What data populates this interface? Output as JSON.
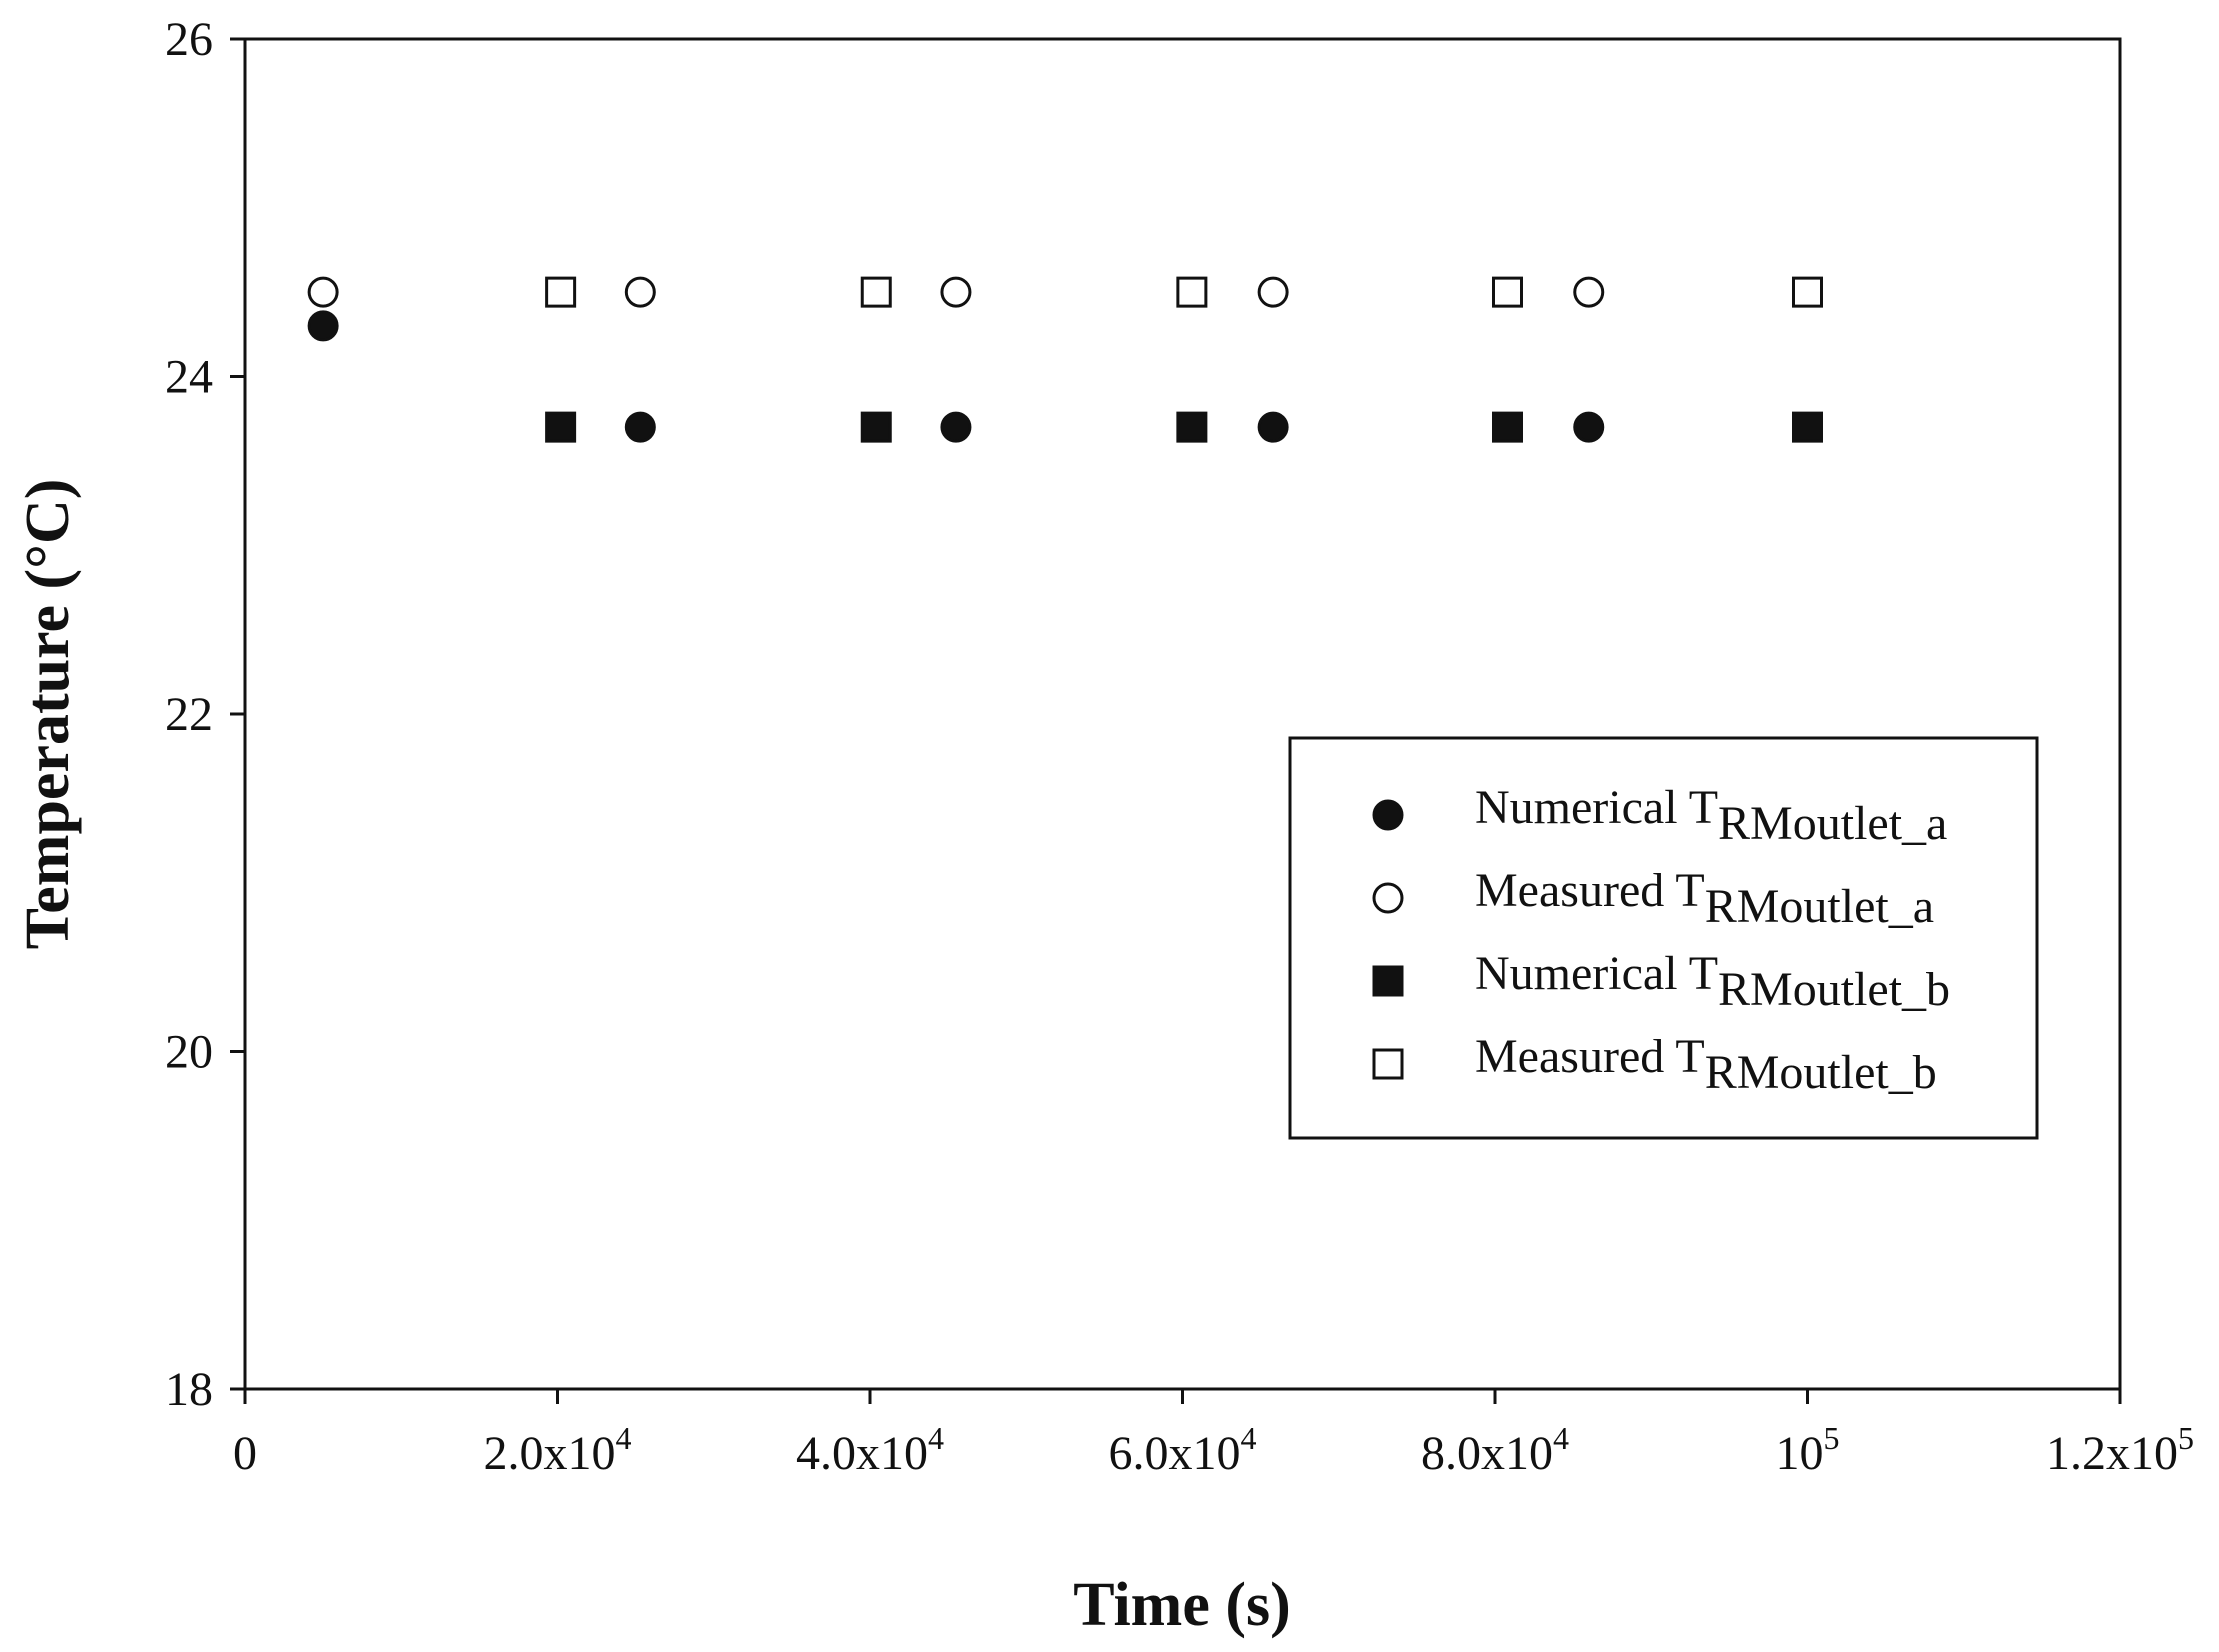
{
  "chart_data": {
    "type": "scatter",
    "title": "",
    "xlabel": "Time (s)",
    "ylabel": "Temperature (°C)",
    "xlim": [
      0,
      120000
    ],
    "ylim": [
      18,
      26
    ],
    "grid": false,
    "legend_position": "center-right",
    "x_ticks": [
      {
        "value": 0,
        "mantissa": "0",
        "exponent": ""
      },
      {
        "value": 20000,
        "mantissa": "2.0x10",
        "exponent": "4"
      },
      {
        "value": 40000,
        "mantissa": "4.0x10",
        "exponent": "4"
      },
      {
        "value": 60000,
        "mantissa": "6.0x10",
        "exponent": "4"
      },
      {
        "value": 80000,
        "mantissa": "8.0x10",
        "exponent": "4"
      },
      {
        "value": 100000,
        "mantissa": "10",
        "exponent": "5"
      },
      {
        "value": 120000,
        "mantissa": "1.2x10",
        "exponent": "5"
      }
    ],
    "y_ticks": [
      {
        "value": 18,
        "label": "18"
      },
      {
        "value": 20,
        "label": "20"
      },
      {
        "value": 22,
        "label": "22"
      },
      {
        "value": 24,
        "label": "24"
      },
      {
        "value": 26,
        "label": "26"
      }
    ],
    "series": [
      {
        "name": "Numerical T_RMoutlet_a",
        "label_main": "Numerical T",
        "label_sub": "RMoutlet_a",
        "marker": "circle",
        "filled": true,
        "x": [
          5000,
          25300,
          45500,
          65800,
          86000
        ],
        "y": [
          24.3,
          23.7,
          23.7,
          23.7,
          23.7
        ]
      },
      {
        "name": "Measured T_RMoutlet_a",
        "label_main": "Measured T",
        "label_sub": "RMoutlet_a",
        "marker": "circle",
        "filled": false,
        "x": [
          5000,
          25300,
          45500,
          65800,
          86000
        ],
        "y": [
          24.5,
          24.5,
          24.5,
          24.5,
          24.5
        ]
      },
      {
        "name": "Numerical T_RMoutlet_b",
        "label_main": "Numerical T",
        "label_sub": "RMoutlet_b",
        "marker": "square",
        "filled": true,
        "x": [
          20200,
          40400,
          60600,
          80800,
          100000
        ],
        "y": [
          23.7,
          23.7,
          23.7,
          23.7,
          23.7
        ]
      },
      {
        "name": "Measured T_RMoutlet_b",
        "label_main": "Measured T",
        "label_sub": "RMoutlet_b",
        "marker": "square",
        "filled": false,
        "x": [
          20200,
          40400,
          60600,
          80800,
          100000
        ],
        "y": [
          24.5,
          24.5,
          24.5,
          24.5,
          24.5
        ]
      }
    ]
  }
}
